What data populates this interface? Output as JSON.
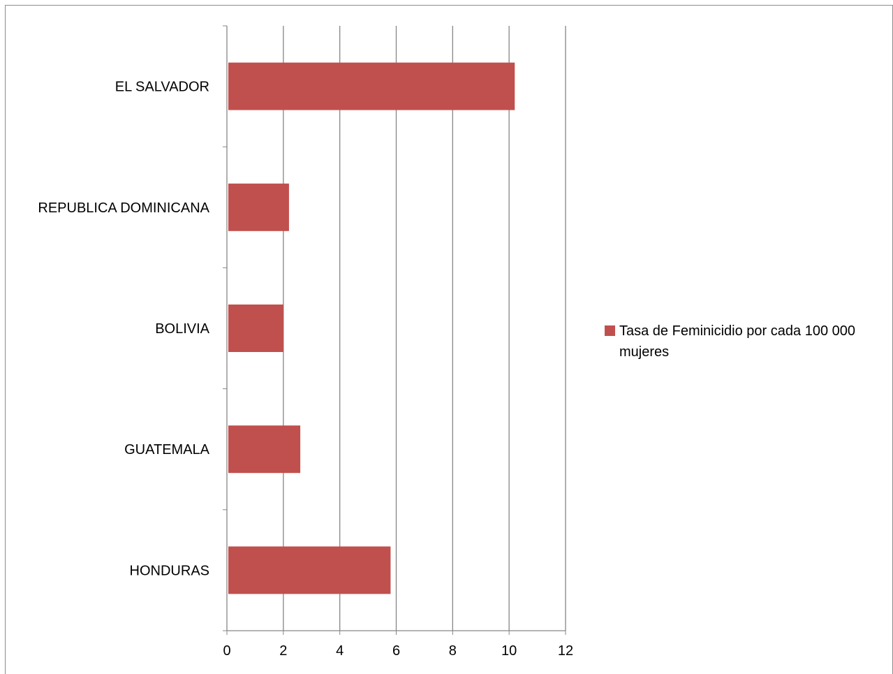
{
  "chart_data": {
    "type": "bar",
    "orientation": "horizontal",
    "categories": [
      "EL SALVADOR",
      "REPUBLICA DOMINICANA",
      "BOLIVIA",
      "GUATEMALA",
      "HONDURAS"
    ],
    "series": [
      {
        "name": "Tasa de Feminicidio por cada 100 000 mujeres",
        "values": [
          10.2,
          2.2,
          2.0,
          2.6,
          5.8
        ],
        "color": "#C0504D"
      }
    ],
    "xlim": [
      0,
      12
    ],
    "xticks": [
      "0",
      "2",
      "4",
      "6",
      "8",
      "10",
      "12"
    ],
    "grid": "vertical",
    "legend": "right",
    "title": "",
    "xlabel": "",
    "ylabel": ""
  },
  "colors": {
    "bar": "#C0504D",
    "gridline": "#868686",
    "axis": "#868686"
  }
}
